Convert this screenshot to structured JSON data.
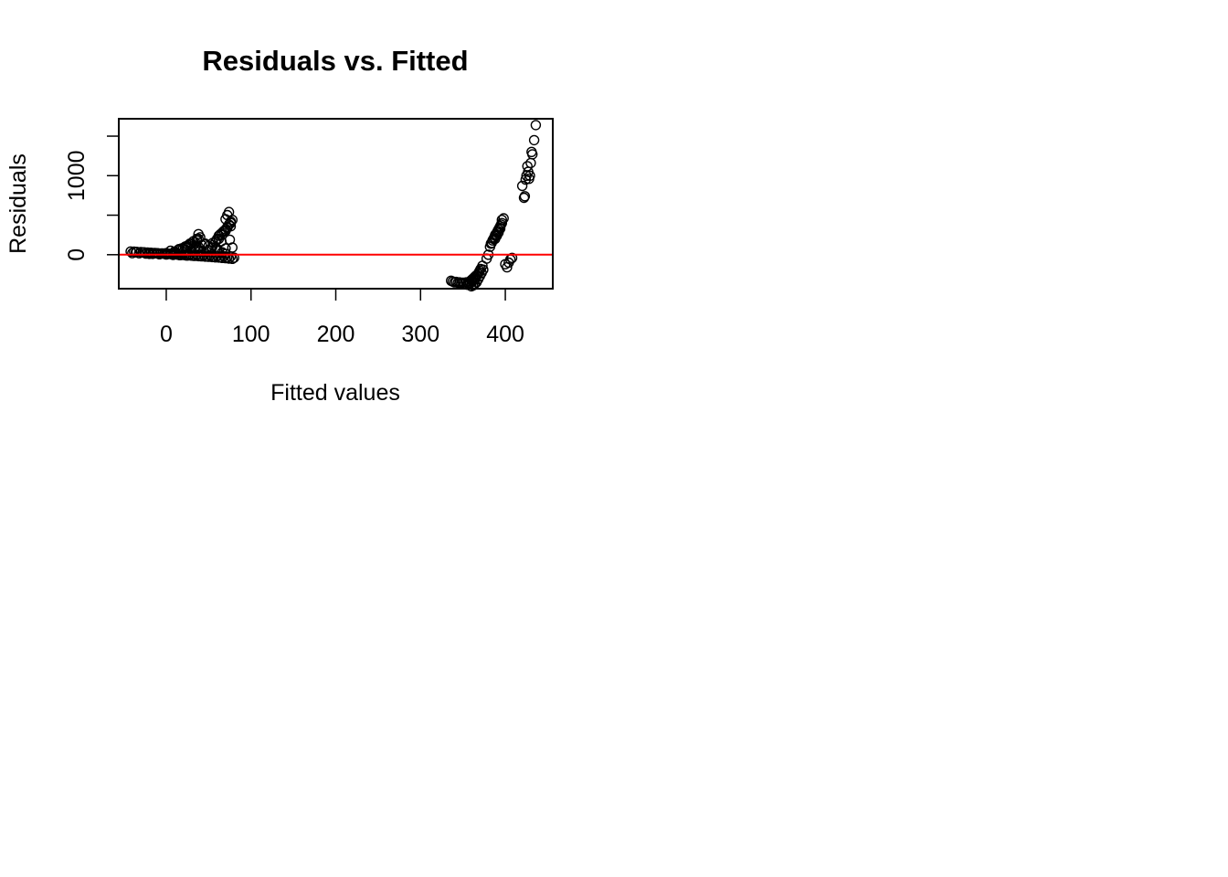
{
  "chart_data": {
    "type": "scatter",
    "title": "Residuals vs. Fitted",
    "xlabel": "Fitted values",
    "ylabel": "Residuals",
    "xlim": [
      -56,
      456
    ],
    "ylim": [
      -430,
      1720
    ],
    "x_ticks": [
      0,
      100,
      200,
      300,
      400
    ],
    "x_tick_labels": [
      "0",
      "100",
      "200",
      "300",
      "400"
    ],
    "y_ticks": [
      0,
      500,
      1000,
      1500
    ],
    "y_tick_labels": [
      "0",
      "",
      "1000",
      ""
    ],
    "reference_line": {
      "y": 0,
      "color": "#ff0000"
    },
    "point_color": "#000000",
    "point_style": "open-circle",
    "grid": false,
    "legend": "none",
    "series": [
      {
        "values_x": [
          -42,
          -38,
          -35,
          -30,
          -26,
          -22,
          -18,
          -14,
          -10,
          -6,
          -2,
          2,
          6,
          10,
          14,
          18,
          22,
          26,
          30,
          34,
          38,
          42,
          46,
          50,
          54,
          58,
          62,
          66,
          70,
          74,
          78,
          -40,
          -32,
          -24,
          -16,
          -8,
          0,
          8,
          16,
          24,
          32,
          40,
          48,
          56,
          64,
          72,
          80,
          -36,
          -28,
          -20,
          -12,
          -4,
          4,
          12,
          20,
          28,
          36,
          44,
          52,
          60,
          68,
          76,
          10,
          14,
          18,
          22,
          26,
          30,
          34,
          36,
          38,
          40,
          20,
          24,
          28,
          32,
          36,
          38,
          55,
          58,
          60,
          62,
          64,
          66,
          68,
          70,
          72,
          74,
          76,
          78,
          62,
          66,
          70,
          72,
          74,
          76,
          70,
          72,
          74,
          76,
          -20,
          -10,
          0,
          10,
          20,
          30,
          40,
          50,
          60,
          70,
          78,
          5,
          15,
          25,
          35,
          45,
          55,
          65,
          75,
          30,
          34,
          38,
          42,
          46,
          50,
          54,
          58,
          62,
          66,
          70
        ],
        "values_y": [
          40,
          38,
          36,
          33,
          30,
          27,
          24,
          21,
          18,
          15,
          12,
          9,
          6,
          3,
          0,
          -3,
          -6,
          -9,
          -12,
          -15,
          -18,
          -21,
          -24,
          -27,
          -30,
          -33,
          -36,
          -40,
          -44,
          -48,
          -52,
          20,
          18,
          14,
          10,
          6,
          2,
          -2,
          -6,
          -10,
          -14,
          -18,
          -22,
          -26,
          -30,
          -34,
          -38,
          30,
          28,
          24,
          20,
          16,
          12,
          8,
          4,
          0,
          -4,
          -8,
          -12,
          -16,
          -20,
          -24,
          40,
          60,
          80,
          100,
          120,
          140,
          160,
          180,
          200,
          220,
          80,
          110,
          140,
          170,
          200,
          260,
          120,
          160,
          200,
          240,
          260,
          280,
          300,
          320,
          350,
          380,
          400,
          440,
          200,
          250,
          300,
          340,
          380,
          420,
          450,
          500,
          540,
          360,
          10,
          15,
          20,
          25,
          30,
          40,
          50,
          60,
          70,
          80,
          90,
          50,
          70,
          90,
          110,
          130,
          150,
          170,
          190,
          60,
          80,
          100,
          120,
          140,
          110,
          90,
          70,
          50,
          30,
          10
        ]
      },
      {
        "values_x": [
          336,
          338,
          340,
          342,
          344,
          346,
          348,
          350,
          352,
          354,
          356,
          358,
          360,
          362,
          364,
          366,
          368,
          370,
          355,
          357,
          359,
          361,
          363,
          365,
          367,
          369,
          371,
          373,
          360,
          362,
          364,
          366,
          368,
          370,
          372,
          374,
          378,
          380,
          382,
          384,
          386,
          388,
          390,
          392,
          394,
          396,
          398,
          383,
          385,
          387,
          389,
          391,
          393,
          395,
          388,
          390,
          392,
          394,
          396,
          400,
          402,
          404,
          406,
          408,
          420,
          422,
          423,
          424,
          425,
          426,
          427,
          428,
          429,
          430,
          431,
          432,
          434,
          436
        ],
        "values_y": [
          -330,
          -340,
          -350,
          -345,
          -355,
          -350,
          -360,
          -355,
          -365,
          -350,
          -360,
          -340,
          -320,
          -300,
          -280,
          -260,
          -240,
          -200,
          -380,
          -370,
          -360,
          -340,
          -320,
          -300,
          -260,
          -220,
          -180,
          -140,
          -400,
          -390,
          -370,
          -350,
          -310,
          -270,
          -230,
          -190,
          -50,
          0,
          100,
          150,
          200,
          250,
          280,
          320,
          360,
          400,
          460,
          140,
          180,
          220,
          260,
          300,
          340,
          380,
          200,
          240,
          280,
          330,
          440,
          -120,
          -160,
          -100,
          -60,
          -40,
          870,
          720,
          740,
          950,
          1000,
          1120,
          1050,
          960,
          1000,
          1160,
          1300,
          1270,
          1450,
          1640
        ]
      }
    ]
  }
}
